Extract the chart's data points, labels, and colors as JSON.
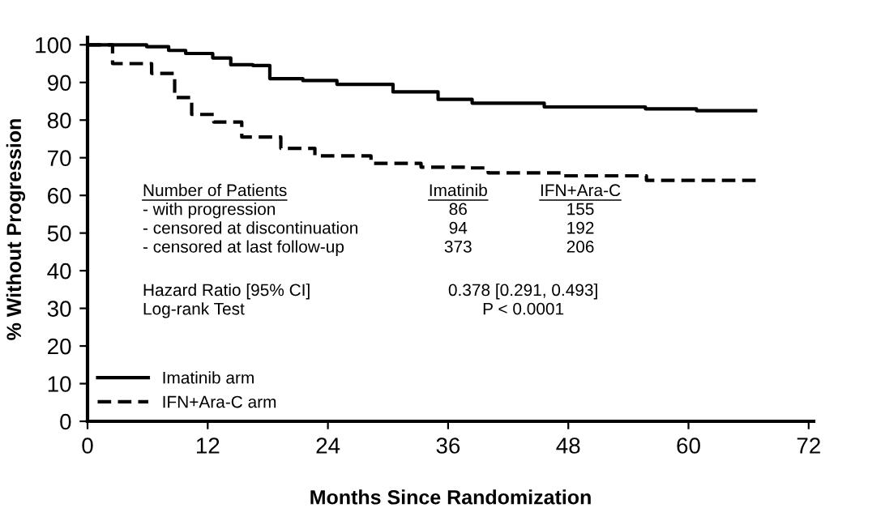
{
  "chart_data": {
    "type": "step",
    "xlabel": "Months Since Randomization",
    "ylabel": "% Without Progression",
    "xlim": [
      0,
      72.5
    ],
    "ylim": [
      0,
      102
    ],
    "xticks": [
      0,
      12,
      24,
      36,
      48,
      60,
      72
    ],
    "yticks": [
      0,
      10,
      20,
      30,
      40,
      50,
      60,
      70,
      80,
      90,
      100
    ],
    "grid": false,
    "legend": "bottom left",
    "marker": "none",
    "series": [
      {
        "name": "Imatinib arm",
        "color": "#000000",
        "line_style": "solid",
        "x": [
          0,
          5.9,
          8.1,
          9.8,
          12.5,
          14.3,
          16.5,
          18.2,
          21.5,
          24.9,
          30.5,
          35,
          38.4,
          45.6,
          55.7,
          60.8,
          66.7
        ],
        "values": [
          100,
          99.5,
          98.5,
          97.7,
          96.5,
          94.7,
          94.5,
          91,
          90.5,
          89.5,
          87.5,
          85.5,
          84.5,
          83.5,
          83,
          82.5,
          82.5
        ]
      },
      {
        "name": "IFN+Ara-C arm",
        "color": "#000000",
        "line_style": "dashed",
        "x": [
          0,
          2.5,
          6.4,
          8.7,
          10.4,
          12.6,
          15.4,
          19.3,
          22.7,
          28.3,
          33.3,
          37.8,
          40,
          47.3,
          55.8,
          66.9
        ],
        "values": [
          100,
          95,
          92.4,
          86,
          81.5,
          79.5,
          75.5,
          72.5,
          70.5,
          68.5,
          67.5,
          67.3,
          66,
          65.2,
          64,
          63.5
        ]
      }
    ],
    "annotations": [
      "Number of Patients",
      "Imatinib",
      "IFN+Ara-C",
      "- with progression",
      "86",
      "155",
      "- censored at discontinuation",
      "94",
      "192",
      "- censored at last follow-up",
      "373",
      "206",
      "Hazard Ratio [95% CI]",
      "0.378 [0.291, 0.493]",
      "Log-rank Test",
      "P < 0.0001"
    ]
  }
}
